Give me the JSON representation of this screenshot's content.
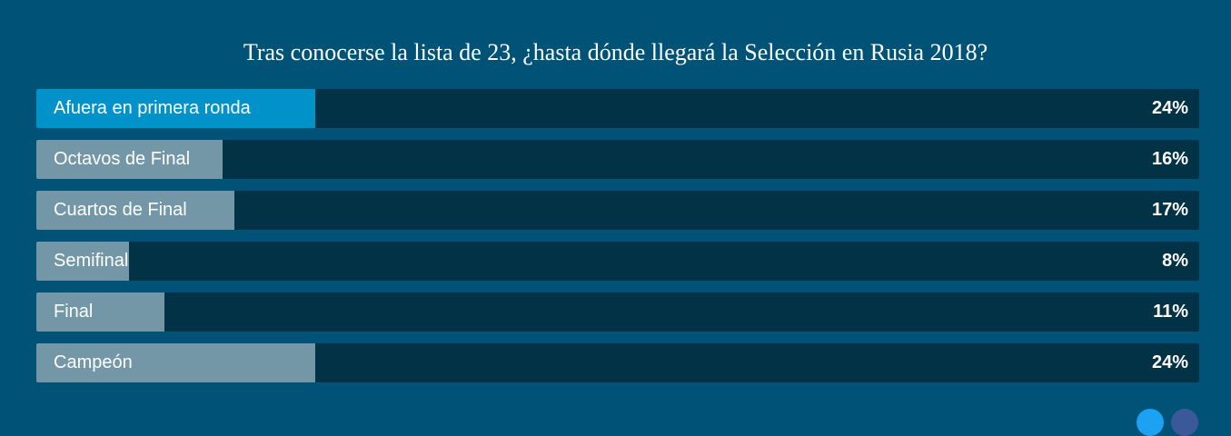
{
  "chart_data": {
    "type": "bar",
    "title": "Tras conocerse la lista de 23, ¿hasta dónde llegará la Selección en Rusia 2018?",
    "categories": [
      "Afuera en primera ronda",
      "Octavos de Final",
      "Cuartos de Final",
      "Semifinal",
      "Final",
      "Campeón"
    ],
    "values": [
      24,
      16,
      17,
      8,
      11,
      24
    ],
    "value_labels": [
      "24%",
      "16%",
      "17%",
      "8%",
      "11%",
      "24%"
    ],
    "selected_index": 0,
    "xlim": [
      0,
      100
    ],
    "orientation": "horizontal"
  },
  "colors": {
    "background": "#005377",
    "track": "#023246",
    "fill": "#7497a8",
    "selected_fill": "#0292ca",
    "text": "#ffffff"
  },
  "icons": [
    "twitter-share-icon",
    "facebook-share-icon"
  ]
}
